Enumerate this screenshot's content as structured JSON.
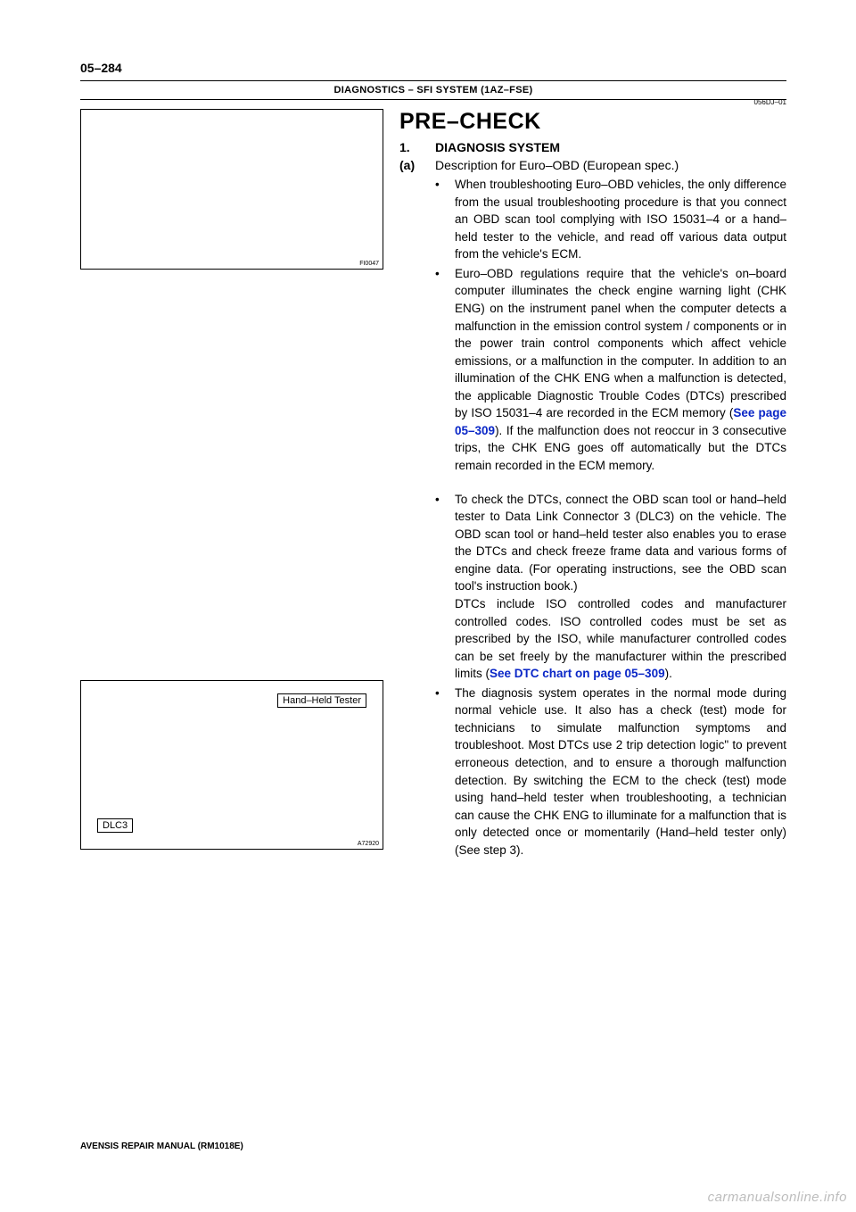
{
  "page_number": "05–284",
  "header_breadcrumb": "DIAGNOSTICS    –    SFI SYSTEM (1AZ–FSE)",
  "top_right_code": "056DJ–01",
  "title": "PRE–CHECK",
  "section1": {
    "num": "1.",
    "text": "DIAGNOSIS SYSTEM"
  },
  "sectionA": {
    "num": "(a)",
    "text": "Description for Euro–OBD (European spec.)"
  },
  "fig1_code": "FI0047",
  "fig2_code": "A72920",
  "fig2_label_dlc3": "DLC3",
  "fig2_label_tester": "Hand–Held Tester",
  "bullet_mark": "•",
  "b1": "When troubleshooting Euro–OBD vehicles, the only difference from the usual troubleshooting procedure is that you connect an OBD scan tool complying with ISO 15031–4 or a hand–held tester to the vehicle, and read off various data output from the vehicle's ECM.",
  "b2a": "Euro–OBD regulations require that the vehicle's on–board computer illuminates the check engine warning light (CHK ENG) on the instrument panel when the computer detects a malfunction in the emission control system / components or in the power train control components which affect vehicle emissions, or a malfunction in the computer. In addition to an illumination of the CHK ENG when a malfunction is detected, the applicable Diagnostic Trouble Codes (DTCs) prescribed by ISO 15031–4 are recorded in the ECM memory (",
  "b2_link": "See page 05–309",
  "b2b": "). If the malfunction does not reoccur in 3 consecutive trips, the CHK ENG goes off automatically but the DTCs remain recorded in the ECM memory.",
  "b3a": "To check the DTCs, connect the OBD scan tool or hand–held tester to Data Link Connector 3 (DLC3) on the vehicle. The OBD scan tool or hand–held tester also enables you to erase the DTCs and check freeze frame data and various forms of engine data. (For operating instructions, see the OBD scan tool's instruction book.)",
  "b3b_start": "DTCs include ISO controlled codes and manufacturer controlled codes. ISO controlled codes must be set as prescribed by the ISO, while manufacturer controlled codes can be set freely by the manufacturer within the prescribed limits (",
  "b3_link": "See DTC chart on page 05–309",
  "b3b_end": ").",
  "b4": "The diagnosis system operates in the normal mode during normal vehicle use. It also has a check (test) mode for technicians to simulate malfunction symptoms and troubleshoot. Most DTCs use 2 trip detection logic\" to prevent erroneous detection, and to ensure a thorough malfunction detection. By switching the ECM to the check (test) mode using hand–held tester when troubleshooting, a technician can cause the CHK ENG to illuminate for a malfunction that is only detected once or momentarily (Hand–held tester only) (See step 3).",
  "footer": "AVENSIS REPAIR MANUAL   (RM1018E)",
  "watermark": "carmanualsonline.info",
  "colors": {
    "link": "#0926c7",
    "watermark": "#bdbdbd",
    "text": "#000000",
    "bg": "#ffffff"
  },
  "typography": {
    "title_pt": 25,
    "body_pt": 13.5,
    "header_pt": 11,
    "pageno_pt": 14,
    "footer_pt": 10
  }
}
